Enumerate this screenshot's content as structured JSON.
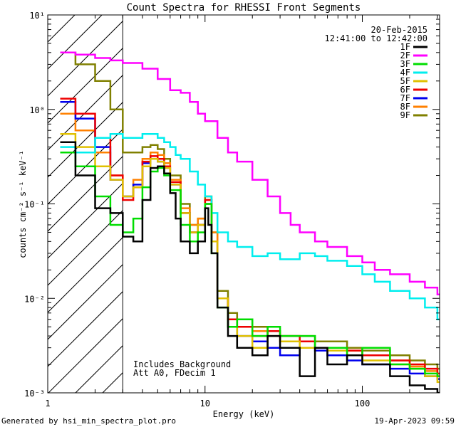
{
  "chart_data": {
    "type": "line",
    "title": "Count Spectra for RHESSI Front Segments",
    "xlabel": "Energy (keV)",
    "ylabel": "counts cm⁻² s⁻¹ keV⁻¹",
    "xscale": "log",
    "yscale": "log",
    "xlim": [
      1,
      310
    ],
    "ylim": [
      0.001,
      10
    ],
    "x_ticks": [
      {
        "value": 1,
        "label": "1"
      },
      {
        "value": 10,
        "label": "10"
      },
      {
        "value": 100,
        "label": "100"
      }
    ],
    "y_ticks": [
      {
        "value": 10,
        "label": "10¹"
      },
      {
        "value": 1,
        "label": "10⁰"
      },
      {
        "value": 0.1,
        "label": "10⁻¹"
      },
      {
        "value": 0.01,
        "label": "10⁻²"
      },
      {
        "value": 0.001,
        "label": "10⁻³"
      }
    ],
    "date": "20-Feb-2015",
    "time_range": "12:41:00 to 12:42:00",
    "excluded_region_xmax": 3,
    "annotations": [
      "Includes Background",
      "Att A0, FDecim 1"
    ],
    "legend_position": "top-right",
    "series": [
      {
        "name": "1F",
        "color": "#000000",
        "x": [
          1.2,
          1.5,
          2,
          2.5,
          3,
          3.5,
          4,
          4.5,
          5,
          5.5,
          6,
          6.5,
          7,
          8,
          9,
          10,
          10.5,
          11,
          12,
          14,
          16,
          20,
          25,
          30,
          40,
          50,
          60,
          80,
          100,
          150,
          200,
          250,
          300
        ],
        "values": [
          0.45,
          0.2,
          0.09,
          0.08,
          0.045,
          0.04,
          0.11,
          0.24,
          0.25,
          0.21,
          0.13,
          0.07,
          0.04,
          0.03,
          0.04,
          0.09,
          0.06,
          0.03,
          0.008,
          0.004,
          0.003,
          0.0025,
          0.004,
          0.003,
          0.0015,
          0.003,
          0.002,
          0.0025,
          0.002,
          0.0015,
          0.0012,
          0.0011,
          0.001
        ]
      },
      {
        "name": "2F",
        "color": "#ff00ff",
        "x": [
          1.2,
          1.5,
          2,
          2.5,
          3,
          4,
          5,
          6,
          7,
          8,
          9,
          10,
          12,
          14,
          16,
          20,
          25,
          30,
          35,
          40,
          50,
          60,
          80,
          100,
          120,
          150,
          200,
          250,
          300
        ],
        "values": [
          4,
          3.8,
          3.5,
          3.3,
          3.1,
          2.7,
          2.1,
          1.6,
          1.5,
          1.2,
          0.9,
          0.75,
          0.5,
          0.35,
          0.28,
          0.18,
          0.12,
          0.08,
          0.06,
          0.05,
          0.04,
          0.035,
          0.028,
          0.024,
          0.02,
          0.018,
          0.015,
          0.013,
          0.011
        ]
      },
      {
        "name": "3F",
        "color": "#00dd00",
        "x": [
          1.2,
          1.5,
          2,
          2.5,
          3,
          3.5,
          4,
          4.5,
          5,
          5.5,
          6,
          7,
          8,
          9,
          10,
          11,
          12,
          14,
          16,
          20,
          25,
          30,
          40,
          50,
          60,
          80,
          100,
          150,
          200,
          250,
          300
        ],
        "values": [
          0.35,
          0.25,
          0.12,
          0.06,
          0.05,
          0.07,
          0.15,
          0.22,
          0.24,
          0.2,
          0.14,
          0.06,
          0.04,
          0.05,
          0.1,
          0.03,
          0.008,
          0.005,
          0.006,
          0.004,
          0.005,
          0.004,
          0.004,
          0.003,
          0.003,
          0.0025,
          0.003,
          0.002,
          0.0018,
          0.0016,
          0.0015
        ]
      },
      {
        "name": "4F",
        "color": "#00eeee",
        "x": [
          1.2,
          1.5,
          2,
          2.5,
          3,
          3.5,
          4,
          4.5,
          5,
          5.5,
          6,
          6.5,
          7,
          8,
          9,
          10,
          11,
          12,
          14,
          16,
          20,
          25,
          30,
          40,
          50,
          60,
          80,
          100,
          120,
          150,
          200,
          250,
          300
        ],
        "values": [
          0.4,
          0.35,
          0.5,
          0.55,
          0.5,
          0.5,
          0.55,
          0.55,
          0.5,
          0.45,
          0.4,
          0.33,
          0.3,
          0.22,
          0.16,
          0.12,
          0.08,
          0.05,
          0.04,
          0.035,
          0.028,
          0.03,
          0.026,
          0.03,
          0.028,
          0.025,
          0.022,
          0.018,
          0.015,
          0.012,
          0.01,
          0.008,
          0.006
        ]
      },
      {
        "name": "5F",
        "color": "#e0c000",
        "x": [
          1.2,
          1.5,
          2,
          2.5,
          3,
          3.5,
          4,
          4.5,
          5,
          5.5,
          6,
          7,
          8,
          9,
          10,
          11,
          12,
          14,
          16,
          20,
          25,
          30,
          40,
          50,
          60,
          80,
          100,
          150,
          200,
          250,
          300
        ],
        "values": [
          0.55,
          0.4,
          0.25,
          0.18,
          0.12,
          0.15,
          0.25,
          0.3,
          0.28,
          0.24,
          0.16,
          0.08,
          0.05,
          0.06,
          0.1,
          0.04,
          0.01,
          0.005,
          0.004,
          0.003,
          0.004,
          0.0035,
          0.003,
          0.003,
          0.0028,
          0.0025,
          0.0022,
          0.002,
          0.0018,
          0.0015,
          0.0013
        ]
      },
      {
        "name": "6F",
        "color": "#ee0000",
        "x": [
          1.2,
          1.5,
          2,
          2.5,
          3,
          3.5,
          4,
          4.5,
          5,
          5.5,
          6,
          7,
          8,
          9,
          10,
          11,
          12,
          14,
          16,
          20,
          25,
          30,
          40,
          50,
          60,
          80,
          100,
          150,
          200,
          250,
          300
        ],
        "values": [
          1.3,
          0.9,
          0.5,
          0.2,
          0.11,
          0.15,
          0.28,
          0.32,
          0.3,
          0.25,
          0.17,
          0.08,
          0.05,
          0.06,
          0.11,
          0.04,
          0.01,
          0.006,
          0.005,
          0.004,
          0.0045,
          0.004,
          0.0035,
          0.003,
          0.003,
          0.0028,
          0.0025,
          0.0022,
          0.002,
          0.0018,
          0.0016
        ]
      },
      {
        "name": "7F",
        "color": "#0000ee",
        "x": [
          1.2,
          1.5,
          2,
          2.5,
          3,
          3.5,
          4,
          4.5,
          5,
          5.5,
          6,
          7,
          8,
          9,
          10,
          11,
          12,
          14,
          16,
          20,
          25,
          30,
          40,
          50,
          60,
          80,
          100,
          150,
          200,
          250,
          300
        ],
        "values": [
          1.2,
          0.8,
          0.4,
          0.18,
          0.12,
          0.16,
          0.27,
          0.3,
          0.28,
          0.24,
          0.16,
          0.08,
          0.05,
          0.06,
          0.1,
          0.04,
          0.01,
          0.005,
          0.004,
          0.0035,
          0.003,
          0.0025,
          0.003,
          0.0028,
          0.0025,
          0.0022,
          0.002,
          0.0018,
          0.0016,
          0.0015,
          0.0014
        ]
      },
      {
        "name": "8F",
        "color": "#ff8000",
        "x": [
          1.2,
          1.5,
          2,
          2.5,
          3,
          3.5,
          4,
          4.5,
          5,
          5.5,
          6,
          7,
          8,
          9,
          10,
          11,
          12,
          14,
          16,
          20,
          25,
          30,
          40,
          50,
          60,
          80,
          100,
          150,
          200,
          250,
          300
        ],
        "values": [
          0.9,
          0.6,
          0.35,
          0.2,
          0.12,
          0.18,
          0.3,
          0.35,
          0.33,
          0.27,
          0.18,
          0.09,
          0.06,
          0.07,
          0.11,
          0.05,
          0.01,
          0.006,
          0.005,
          0.0045,
          0.004,
          0.0035,
          0.0035,
          0.003,
          0.003,
          0.0028,
          0.0025,
          0.0022,
          0.0019,
          0.0017,
          0.0015
        ]
      },
      {
        "name": "9F",
        "color": "#808000",
        "x": [
          1.2,
          1.5,
          2,
          2.5,
          3,
          3.5,
          4,
          4.5,
          5,
          5.5,
          6,
          7,
          8,
          9,
          10,
          11,
          12,
          14,
          16,
          20,
          25,
          30,
          40,
          50,
          60,
          80,
          100,
          150,
          200,
          250,
          300
        ],
        "values": [
          4,
          3,
          2,
          1,
          0.35,
          0.35,
          0.4,
          0.42,
          0.38,
          0.3,
          0.2,
          0.1,
          0.06,
          0.07,
          0.12,
          0.05,
          0.012,
          0.007,
          0.006,
          0.005,
          0.0045,
          0.004,
          0.004,
          0.0035,
          0.0035,
          0.003,
          0.0028,
          0.0025,
          0.0022,
          0.002,
          0.0018
        ]
      }
    ]
  },
  "footer": {
    "generated_by": "Generated by hsi_min_spectra_plot.pro",
    "timestamp": "19-Apr-2023 09:59"
  }
}
